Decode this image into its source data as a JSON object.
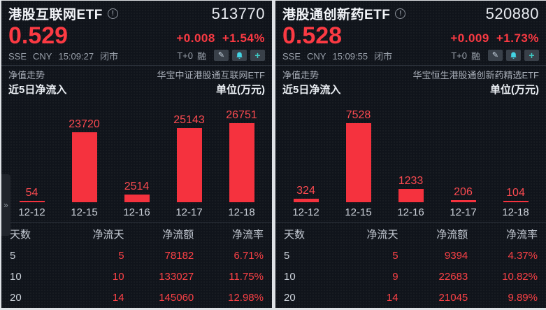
{
  "colors": {
    "up_red": "#fb3a43",
    "bar_red": "#f5323e",
    "bg_dark": "#10141b",
    "bell_cyan": "#43d4e4",
    "plus_teal": "#3ecac3"
  },
  "icons": {
    "info": "!",
    "pencil": "✎",
    "plus": "+",
    "expander": "»",
    "bell": "alert-bell"
  },
  "panels": [
    {
      "title": "港股互联网ETF",
      "code": "513770",
      "price": "0.529",
      "change": "+0.008",
      "change_pct": "+1.54%",
      "exchange": "SSE",
      "currency": "CNY",
      "time": "15:09:27",
      "market_status": "闭市",
      "t0_tag": "T+0",
      "margin_tag": "融",
      "nav_label": "净值走势",
      "fund_name": "华宝中证港股通互联网ETF",
      "section_title": "近5日净流入",
      "unit_label": "单位(万元)",
      "chart": {
        "categories": [
          "12-12",
          "12-15",
          "12-16",
          "12-17",
          "12-18"
        ],
        "values": [
          54,
          23720,
          2514,
          25143,
          26751
        ]
      },
      "table": {
        "headers": [
          "天数",
          "净流天",
          "净流额",
          "净流率"
        ],
        "rows": [
          [
            "5",
            "5",
            "78182",
            "6.71%"
          ],
          [
            "10",
            "10",
            "133027",
            "11.75%"
          ],
          [
            "20",
            "14",
            "145060",
            "12.98%"
          ]
        ]
      }
    },
    {
      "title": "港股通创新药ETF",
      "code": "520880",
      "price": "0.528",
      "change": "+0.009",
      "change_pct": "+1.73%",
      "exchange": "SSE",
      "currency": "CNY",
      "time": "15:09:55",
      "market_status": "闭市",
      "t0_tag": "T+0",
      "margin_tag": "融",
      "nav_label": "净值走势",
      "fund_name": "华宝恒生港股通创新药精选ETF",
      "section_title": "近5日净流入",
      "unit_label": "单位(万元)",
      "chart": {
        "categories": [
          "12-12",
          "12-15",
          "12-16",
          "12-17",
          "12-18"
        ],
        "values": [
          324,
          7528,
          1233,
          206,
          104
        ]
      },
      "table": {
        "headers": [
          "天数",
          "净流天",
          "净流额",
          "净流率"
        ],
        "rows": [
          [
            "5",
            "5",
            "9394",
            "4.37%"
          ],
          [
            "10",
            "9",
            "22683",
            "10.82%"
          ],
          [
            "20",
            "14",
            "21045",
            "9.89%"
          ]
        ]
      }
    }
  ],
  "chart_data": [
    {
      "type": "bar",
      "title": "近5日净流入 (港股互联网ETF 513770)",
      "categories": [
        "12-12",
        "12-15",
        "12-16",
        "12-17",
        "12-18"
      ],
      "values": [
        54,
        23720,
        2514,
        25143,
        26751
      ],
      "xlabel": "",
      "ylabel": "单位(万元)",
      "grid": false,
      "bar_color": "#f5323e"
    },
    {
      "type": "bar",
      "title": "近5日净流入 (港股通创新药ETF 520880)",
      "categories": [
        "12-12",
        "12-15",
        "12-16",
        "12-17",
        "12-18"
      ],
      "values": [
        324,
        7528,
        1233,
        206,
        104
      ],
      "xlabel": "",
      "ylabel": "单位(万元)",
      "grid": false,
      "bar_color": "#f5323e"
    }
  ]
}
